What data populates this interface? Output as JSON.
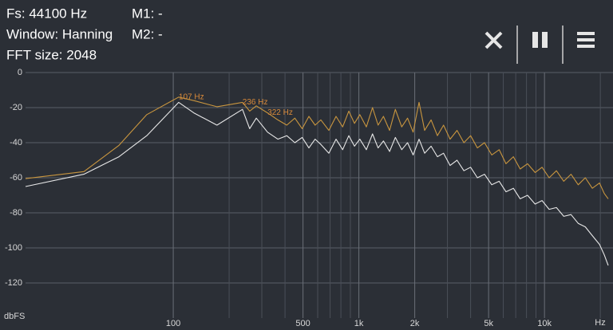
{
  "header": {
    "fs": "Fs: 44100 Hz",
    "window": "Window: Hanning",
    "fft": "FFT size: 2048",
    "m1": "M1: -",
    "m2": "M2: -"
  },
  "chart_data": {
    "type": "line",
    "y_label": "dbFS",
    "x_label": "Hz",
    "log_x": true,
    "grid": true,
    "xlim": [
      16,
      22050
    ],
    "ylim": [
      -140,
      0
    ],
    "yticks": [
      0,
      -20,
      -40,
      -60,
      -80,
      -100,
      -120
    ],
    "xticks": [
      100,
      500,
      {
        "value": 1000,
        "label": "1k"
      },
      {
        "value": 2000,
        "label": "2k"
      },
      {
        "value": 5000,
        "label": "5k"
      },
      {
        "value": 10000,
        "label": "10k"
      }
    ],
    "x_minor_ticks": [
      200,
      300,
      400,
      600,
      700,
      800,
      900,
      3000,
      4000,
      6000,
      7000,
      8000,
      9000,
      20000
    ],
    "x": [
      16,
      33,
      51,
      72,
      107,
      129,
      172,
      236,
      258,
      280,
      322,
      366,
      409,
      452,
      495,
      538,
      581,
      624,
      689,
      753,
      818,
      883,
      947,
      1012,
      1098,
      1184,
      1270,
      1356,
      1464,
      1572,
      1701,
      1830,
      1960,
      2110,
      2260,
      2450,
      2650,
      2860,
      3100,
      3380,
      3680,
      4000,
      4350,
      4750,
      5200,
      5700,
      6200,
      6800,
      7400,
      8100,
      8900,
      9700,
      10600,
      11600,
      12700,
      13900,
      15200,
      16600,
      18100,
      19800,
      21000,
      22050
    ],
    "series": [
      {
        "color": "#c9963f",
        "values": [
          -60.5,
          -56.5,
          -41.5,
          -24,
          -14,
          -16,
          -19.5,
          -17,
          -22,
          -19,
          -23,
          -27,
          -30,
          -26,
          -32,
          -25,
          -30,
          -27,
          -33,
          -25,
          -31,
          -22,
          -29,
          -24,
          -31,
          -20,
          -30,
          -25,
          -33,
          -21,
          -31,
          -26,
          -34,
          -17,
          -33,
          -27,
          -36,
          -30,
          -38,
          -33,
          -40,
          -36,
          -43,
          -40,
          -47,
          -44,
          -52,
          -48,
          -55,
          -52,
          -57,
          -54,
          -60,
          -56,
          -62,
          -58,
          -64,
          -60,
          -66,
          -63,
          -69,
          -72
        ]
      },
      {
        "color": "#e8e8e8",
        "values": [
          -65,
          -58,
          -48,
          -36,
          -17,
          -23,
          -30,
          -21,
          -32,
          -26,
          -34,
          -38,
          -36,
          -40,
          -37,
          -43,
          -38,
          -41,
          -46,
          -38,
          -44,
          -36,
          -42,
          -38,
          -44,
          -35,
          -43,
          -39,
          -45,
          -37,
          -44,
          -40,
          -47,
          -38,
          -46,
          -42,
          -48,
          -46,
          -53,
          -50,
          -56,
          -54,
          -60,
          -58,
          -64,
          -62,
          -68,
          -66,
          -72,
          -70,
          -75,
          -73,
          -78,
          -77,
          -82,
          -81,
          -86,
          -88,
          -93,
          -98,
          -104,
          -110
        ]
      }
    ],
    "annotations": [
      {
        "x": 107,
        "y": -14,
        "text": "107 Hz"
      },
      {
        "x": 236,
        "y": -17,
        "text": "236 Hz"
      },
      {
        "x": 322,
        "y": -23,
        "text": "322 Hz"
      }
    ]
  }
}
